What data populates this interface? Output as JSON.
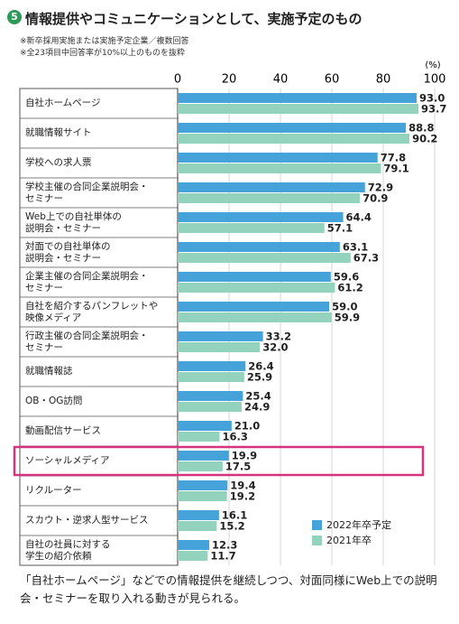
{
  "badge": "5",
  "chart_data": {
    "type": "barh",
    "title": "情報提供やコミュニケーションとして、実施予定のもの",
    "notes": [
      "※新卒採用実施または実施予定企業／複数回答",
      "※全23項目中回答率が10%以上のものを抜粋"
    ],
    "unit_label": "(%)",
    "categories": [
      "自社ホームページ",
      "就職情報サイト",
      "学校への求人票",
      "学校主催の合同企業説明会・\nセミナー",
      "Web上での自社単体の\n説明会・セミナー",
      "対面での自社単体の\n説明会・セミナー",
      "企業主催の合同企業説明会・\nセミナー",
      "自社を紹介するパンフレットや\n映像メディア",
      "行政主催の合同企業説明会・\nセミナー",
      "就職情報誌",
      "OB・OG訪問",
      "動画配信サービス",
      "ソーシャルメディア",
      "リクルーター",
      "スカウト・逆求人型サービス",
      "自社の社員に対する\n学生の紹介依頼"
    ],
    "series": [
      {
        "name": "2022年卒予定",
        "color": "#45a3d9",
        "values": [
          93.0,
          88.8,
          77.8,
          72.9,
          64.4,
          63.1,
          59.6,
          59.0,
          33.2,
          26.4,
          25.4,
          21.0,
          19.9,
          19.4,
          16.1,
          12.3
        ],
        "value_labels": [
          "93.0",
          "88.8",
          "77.8",
          "72.9",
          "64.4",
          "63.1",
          "59.6",
          "59.0",
          "33.2",
          "26.4",
          "25.4",
          "21.0",
          "19.9",
          "19.4",
          "16.1",
          "12.3"
        ]
      },
      {
        "name": "2021年卒",
        "color": "#93d3bd",
        "values": [
          93.7,
          90.2,
          79.1,
          70.9,
          57.1,
          67.3,
          61.2,
          59.9,
          32.0,
          25.9,
          24.9,
          16.3,
          17.5,
          19.2,
          15.2,
          11.7
        ],
        "value_labels": [
          "93.7",
          "90.2",
          "79.1",
          "70.9",
          "57.1",
          "67.3",
          "61.2",
          "59.9",
          "32.0",
          "25.9",
          "24.9",
          "16.3",
          "17.5",
          "19.2",
          "15.2",
          "11.7"
        ]
      }
    ],
    "xlim": [
      0,
      100
    ],
    "xticks": [
      0,
      20,
      40,
      60,
      80,
      100
    ],
    "grid": true,
    "legend": "lower right"
  },
  "caption": "「自社ホームページ」などでの情報提供を継続しつつ、対面同様にWeb上での説明会・セミナーを取り入れる動きが見られる。"
}
